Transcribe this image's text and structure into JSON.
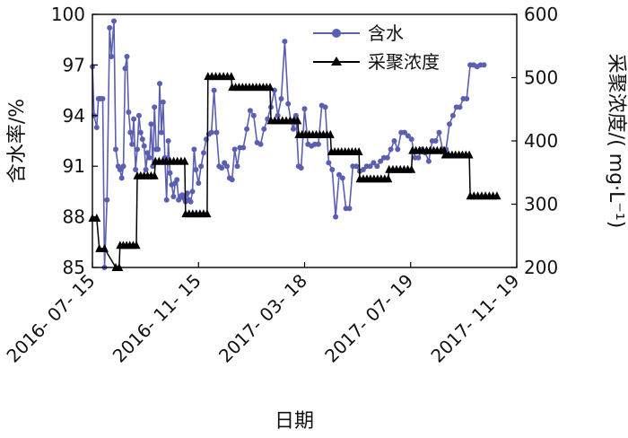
{
  "chart_data": {
    "type": "line",
    "xlabel": "日期",
    "ylabel_left": "含水率/%",
    "ylabel_right": "采聚浓度/( mg·L⁻¹)",
    "x_ticks": [
      "2016-07-15",
      "2016-11-15",
      "2017-03-18",
      "2017-07-19",
      "2017-11-19"
    ],
    "xlim": [
      "2016-07-15",
      "2017-11-19"
    ],
    "ylim_left": [
      85,
      100
    ],
    "yticks_left": [
      "85",
      "88",
      "91",
      "94",
      "97",
      "100"
    ],
    "ylim_right": [
      200,
      600
    ],
    "yticks_right": [
      "200",
      "300",
      "400",
      "500",
      "600"
    ],
    "legend_position": "top-right",
    "colors": {
      "water": "#5b5fb0",
      "polymer": "#000000"
    },
    "series": [
      {
        "name": "含水",
        "axis": "left",
        "marker": "circle",
        "x": [
          "2016-07-15",
          "2016-07-17",
          "2016-07-20",
          "2016-07-22",
          "2016-07-24",
          "2016-07-27",
          "2016-07-29",
          "2016-08-01",
          "2016-08-04",
          "2016-08-06",
          "2016-08-09",
          "2016-08-11",
          "2016-08-14",
          "2016-08-16",
          "2016-08-18",
          "2016-08-20",
          "2016-08-22",
          "2016-08-24",
          "2016-08-26",
          "2016-08-28",
          "2016-08-30",
          "2016-09-01",
          "2016-09-03",
          "2016-09-05",
          "2016-09-07",
          "2016-09-09",
          "2016-09-11",
          "2016-09-13",
          "2016-09-15",
          "2016-09-17",
          "2016-09-19",
          "2016-09-21",
          "2016-09-23",
          "2016-09-25",
          "2016-09-27",
          "2016-09-29",
          "2016-10-01",
          "2016-10-03",
          "2016-10-05",
          "2016-10-07",
          "2016-10-09",
          "2016-10-11",
          "2016-10-13",
          "2016-10-15",
          "2016-10-17",
          "2016-10-19",
          "2016-10-21",
          "2016-10-23",
          "2016-10-25",
          "2016-10-27",
          "2016-10-29",
          "2016-10-31",
          "2016-11-02",
          "2016-11-04",
          "2016-11-06",
          "2016-11-08",
          "2016-11-10",
          "2016-11-12",
          "2016-11-15",
          "2016-11-18",
          "2016-11-21",
          "2016-11-24",
          "2016-11-27",
          "2016-11-30",
          "2016-12-03",
          "2016-12-06",
          "2016-12-09",
          "2016-12-12",
          "2016-12-15",
          "2016-12-18",
          "2016-12-21",
          "2016-12-24",
          "2016-12-27",
          "2016-12-30",
          "2017-01-02",
          "2017-01-06",
          "2017-01-10",
          "2017-01-14",
          "2017-01-18",
          "2017-01-22",
          "2017-01-26",
          "2017-01-30",
          "2017-02-03",
          "2017-02-07",
          "2017-02-11",
          "2017-02-15",
          "2017-02-19",
          "2017-02-23",
          "2017-02-27",
          "2017-03-02",
          "2017-03-05",
          "2017-03-08",
          "2017-03-11",
          "2017-03-14",
          "2017-03-18",
          "2017-03-22",
          "2017-03-26",
          "2017-03-30",
          "2017-04-03",
          "2017-04-07",
          "2017-04-11",
          "2017-04-15",
          "2017-04-19",
          "2017-04-23",
          "2017-04-27",
          "2017-05-01",
          "2017-05-05",
          "2017-05-09",
          "2017-05-13",
          "2017-05-17",
          "2017-05-21",
          "2017-05-25",
          "2017-05-29",
          "2017-06-02",
          "2017-06-06",
          "2017-06-10",
          "2017-06-14",
          "2017-06-18",
          "2017-06-22",
          "2017-06-26",
          "2017-06-30",
          "2017-07-04",
          "2017-07-08",
          "2017-07-12",
          "2017-07-16",
          "2017-07-20",
          "2017-07-24",
          "2017-07-28",
          "2017-08-01",
          "2017-08-05",
          "2017-08-09",
          "2017-08-13",
          "2017-08-17",
          "2017-08-21",
          "2017-08-25",
          "2017-08-29",
          "2017-09-02",
          "2017-09-06",
          "2017-09-10",
          "2017-09-14",
          "2017-09-18",
          "2017-09-22",
          "2017-09-26",
          "2017-09-30",
          "2017-10-04",
          "2017-10-08",
          "2017-10-12"
        ],
        "values": [
          96.9,
          94.0,
          93.3,
          95.0,
          95.0,
          95.0,
          85.0,
          89.0,
          99.2,
          97.5,
          99.6,
          92.0,
          91.0,
          90.8,
          90.3,
          91.0,
          96.8,
          97.5,
          94.2,
          93.0,
          92.3,
          93.8,
          90.8,
          92.0,
          94.0,
          93.0,
          92.6,
          92.2,
          90.8,
          91.8,
          91.5,
          93.5,
          91.0,
          94.5,
          92.0,
          92.0,
          95.9,
          93.0,
          94.8,
          91.5,
          89.0,
          92.5,
          90.6,
          89.9,
          89.2,
          90.0,
          90.2,
          89.0,
          89.2,
          89.3,
          89.1,
          88.9,
          89.4,
          89.0,
          88.9,
          89.5,
          92.0,
          90.8,
          90.0,
          91.0,
          91.8,
          92.6,
          92.9,
          93.0,
          95.5,
          93.0,
          91.0,
          90.9,
          91.2,
          91.0,
          90.3,
          90.2,
          92.0,
          91.0,
          92.1,
          92.1,
          93.2,
          94.3,
          94.0,
          92.4,
          92.3,
          93.2,
          93.8,
          94.5,
          95.5,
          94.0,
          95.0,
          98.4,
          94.7,
          93.7,
          93.2,
          94.0,
          91.0,
          90.9,
          94.4,
          92.3,
          92.2,
          92.3,
          92.3,
          94.6,
          94.5,
          91.2,
          90.8,
          88.0,
          90.5,
          90.3,
          88.5,
          88.5,
          91.0,
          91.0,
          90.7,
          90.8,
          91.0,
          91.0,
          91.2,
          91.0,
          91.3,
          91.5,
          91.5,
          92.0,
          92.5,
          92.0,
          93.0,
          93.0,
          92.8,
          92.6,
          91.5,
          91.5,
          92.0,
          91.8,
          91.3,
          92.5,
          92.5,
          93.0,
          92.0,
          92.0,
          93.5,
          94.0,
          94.5,
          94.5,
          95.0,
          95.0,
          97.0,
          97.0,
          96.9,
          97.0,
          97.0
        ],
        "value_note": "values read off the left axis"
      },
      {
        "name": "采聚浓度",
        "axis": "right",
        "marker": "triangle",
        "segments": [
          {
            "from": "2016-07-15",
            "to": "2016-07-20",
            "value": 278
          },
          {
            "from": "2016-07-23",
            "to": "2016-07-29",
            "value": 230
          },
          {
            "from": "2016-08-11",
            "to": "2016-08-15",
            "value": 200
          },
          {
            "from": "2016-08-16",
            "to": "2016-09-04",
            "value": 235
          },
          {
            "from": "2016-09-05",
            "to": "2016-09-25",
            "value": 345
          },
          {
            "from": "2016-09-26",
            "to": "2016-10-30",
            "value": 368
          },
          {
            "from": "2016-10-31",
            "to": "2016-11-25",
            "value": 285
          },
          {
            "from": "2016-11-26",
            "to": "2016-12-23",
            "value": 502
          },
          {
            "from": "2016-12-24",
            "to": "2017-02-06",
            "value": 485
          },
          {
            "from": "2017-02-07",
            "to": "2017-03-10",
            "value": 432
          },
          {
            "from": "2017-03-11",
            "to": "2017-04-17",
            "value": 410
          },
          {
            "from": "2017-04-18",
            "to": "2017-05-20",
            "value": 383
          },
          {
            "from": "2017-05-21",
            "to": "2017-06-23",
            "value": 340
          },
          {
            "from": "2017-06-24",
            "to": "2017-07-20",
            "value": 355
          },
          {
            "from": "2017-07-21",
            "to": "2017-08-27",
            "value": 385
          },
          {
            "from": "2017-08-28",
            "to": "2017-09-25",
            "value": 378
          },
          {
            "from": "2017-09-26",
            "to": "2017-10-27",
            "value": 313
          }
        ]
      }
    ]
  }
}
